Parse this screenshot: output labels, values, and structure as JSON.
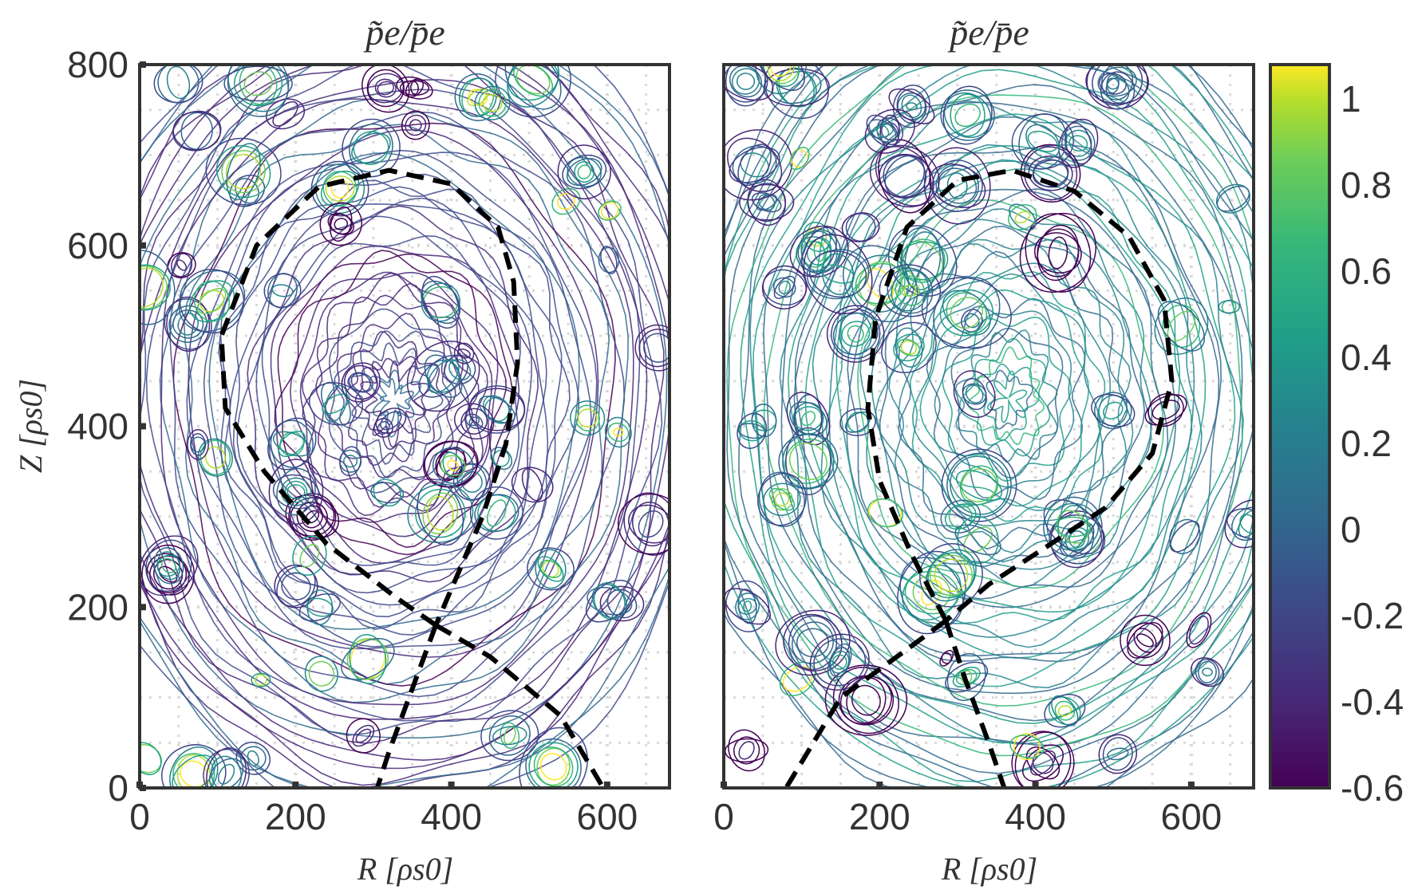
{
  "chart_data": [
    {
      "type": "contour",
      "title": "p̃e/p̄e",
      "xlabel": "R [ρs0]",
      "ylabel": "Z [ρs0]",
      "xlim": [
        0,
        680
      ],
      "ylim": [
        0,
        800
      ],
      "xticks": [
        "0",
        "200",
        "400",
        "600"
      ],
      "yticks": [
        "0",
        "200",
        "400",
        "600",
        "800"
      ],
      "xtick_values": [
        0,
        200,
        400,
        600
      ],
      "ytick_values": [
        0,
        200,
        400,
        600,
        800
      ],
      "grid": true,
      "separatrix": {
        "style": "black dashed",
        "core": [
          [
            380,
            180
          ],
          [
            330,
            210
          ],
          [
            240,
            270
          ],
          [
            160,
            350
          ],
          [
            110,
            420
          ],
          [
            105,
            500
          ],
          [
            150,
            600
          ],
          [
            230,
            665
          ],
          [
            320,
            683
          ],
          [
            400,
            668
          ],
          [
            460,
            620
          ],
          [
            480,
            560
          ],
          [
            485,
            470
          ],
          [
            470,
            380
          ],
          [
            440,
            300
          ],
          [
            410,
            240
          ],
          [
            380,
            180
          ]
        ],
        "legs": [
          [
            [
              380,
              180
            ],
            [
              350,
              110
            ],
            [
              320,
              40
            ],
            [
              305,
              0
            ]
          ],
          [
            [
              380,
              180
            ],
            [
              450,
              145
            ],
            [
              540,
              80
            ],
            [
              595,
              0
            ]
          ]
        ]
      }
    },
    {
      "type": "contour",
      "title": "p̃e/p̄e",
      "xlabel": "R [ρs0]",
      "ylabel": "",
      "xlim": [
        0,
        680
      ],
      "ylim": [
        0,
        800
      ],
      "xticks": [
        "0",
        "200",
        "400",
        "600"
      ],
      "xtick_values": [
        0,
        200,
        400,
        600
      ],
      "grid": true,
      "separatrix": {
        "style": "black dashed",
        "core": [
          [
            285,
            185
          ],
          [
            240,
            260
          ],
          [
            200,
            340
          ],
          [
            185,
            420
          ],
          [
            195,
            520
          ],
          [
            235,
            620
          ],
          [
            300,
            672
          ],
          [
            370,
            683
          ],
          [
            450,
            660
          ],
          [
            520,
            610
          ],
          [
            565,
            540
          ],
          [
            575,
            450
          ],
          [
            550,
            370
          ],
          [
            490,
            310
          ],
          [
            420,
            270
          ],
          [
            340,
            225
          ],
          [
            285,
            185
          ]
        ],
        "legs": [
          [
            [
              285,
              185
            ],
            [
              230,
              150
            ],
            [
              150,
              100
            ],
            [
              80,
              0
            ]
          ],
          [
            [
              285,
              185
            ],
            [
              310,
              120
            ],
            [
              340,
              50
            ],
            [
              360,
              0
            ]
          ]
        ]
      }
    }
  ],
  "colorbar": {
    "cmap": "viridis",
    "min": -0.6,
    "max": 1.08,
    "ticks": [
      "1",
      "0.8",
      "0.6",
      "0.4",
      "0.2",
      "0",
      "-0.2",
      "-0.4",
      "-0.6"
    ],
    "tick_values": [
      1,
      0.8,
      0.6,
      0.4,
      0.2,
      0,
      -0.2,
      -0.4,
      -0.6
    ]
  }
}
